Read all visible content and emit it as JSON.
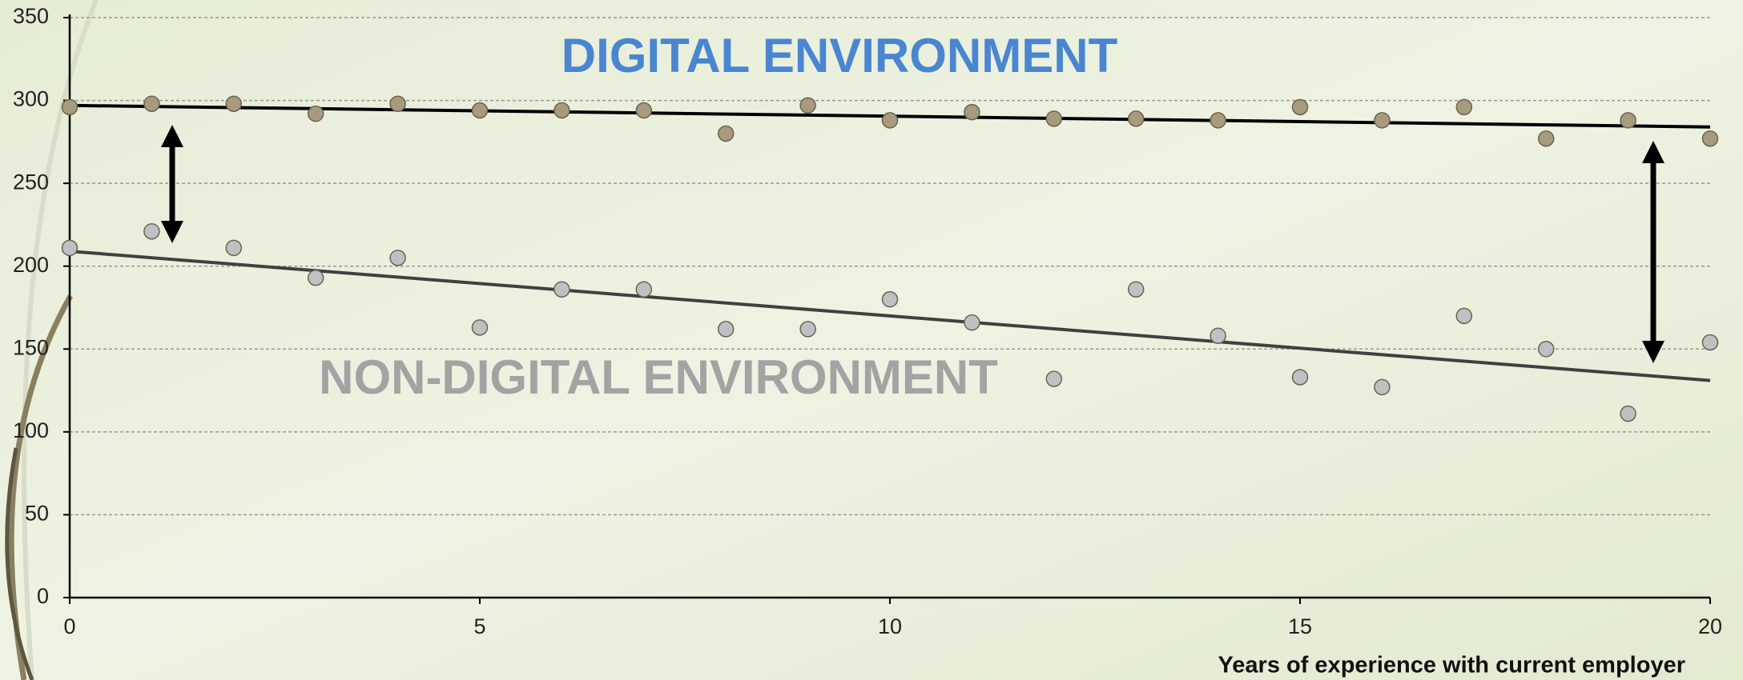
{
  "chart_data": {
    "type": "scatter",
    "x_label": "Years of experience with current employer",
    "annotations": [
      "DIGITAL ENVIRONMENT",
      "NON-DIGITAL ENVIRONMENT"
    ],
    "annotation_colors": [
      "#4a86d0",
      "#a3a3a3"
    ],
    "x": [
      0,
      1,
      2,
      3,
      4,
      5,
      6,
      7,
      8,
      9,
      10,
      11,
      12,
      13,
      14,
      15,
      16,
      17,
      18,
      19,
      20
    ],
    "series": [
      {
        "name": "DIGITAL ENVIRONMENT",
        "color": "#a89a7c",
        "values": [
          296,
          298,
          298,
          292,
          298,
          294,
          294,
          294,
          280,
          297,
          288,
          293,
          289,
          289,
          288,
          296,
          288,
          296,
          277,
          288,
          277
        ]
      },
      {
        "name": "NON-DIGITAL ENVIRONMENT",
        "color": "#c0c0c4",
        "values": [
          211,
          221,
          211,
          193,
          205,
          163,
          186,
          186,
          162,
          162,
          180,
          166,
          132,
          186,
          158,
          133,
          127,
          170,
          150,
          111,
          154
        ]
      }
    ],
    "trend_lines": [
      {
        "color": "#000000",
        "x": [
          0,
          20
        ],
        "values": [
          297,
          284
        ]
      },
      {
        "color": "#404040",
        "x": [
          0,
          20
        ],
        "values": [
          209,
          131
        ]
      }
    ],
    "xlim": [
      0,
      20
    ],
    "xticks": [
      0,
      5,
      10,
      15,
      20
    ],
    "ylim": [
      0,
      350
    ],
    "yticks": [
      0,
      50,
      100,
      150,
      200,
      250,
      300,
      350
    ],
    "grid": true
  }
}
